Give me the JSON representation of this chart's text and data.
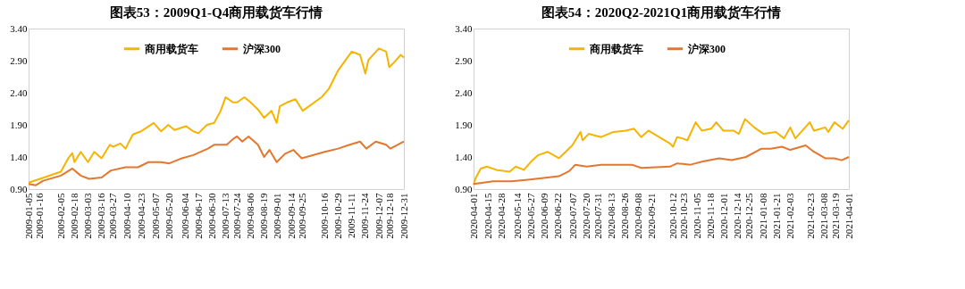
{
  "chart_data": [
    {
      "type": "line",
      "title": "图表53：2009Q1-Q4商用载货车行情",
      "ylim": [
        0.9,
        3.4
      ],
      "yticks": [
        {
          "value": 0.9,
          "label": "0.90"
        },
        {
          "value": 1.4,
          "label": "1.40"
        },
        {
          "value": 1.9,
          "label": "1.90"
        },
        {
          "value": 2.4,
          "label": "2.40"
        },
        {
          "value": 2.9,
          "label": "2.90"
        },
        {
          "value": 3.4,
          "label": "3.40"
        }
      ],
      "xlim": [
        "2009-01-05",
        "2009-12-31"
      ],
      "xticks": [
        "2009-01-05",
        "2009-01-16",
        "2009-02-05",
        "2009-02-18",
        "2009-03-03",
        "2009-03-16",
        "2009-03-27",
        "2009-04-10",
        "2009-04-23",
        "2009-05-07",
        "2009-05-20",
        "2009-06-04",
        "2009-06-17",
        "2009-06-30",
        "2009-07-13",
        "2009-07-24",
        "2009-08-06",
        "2009-08-19",
        "2009-09-01",
        "2009-09-14",
        "2009-09-25",
        "2009-10-16",
        "2009-10-29",
        "2009-11-11",
        "2009-11-24",
        "2009-12-07",
        "2009-12-18",
        "2009-12-31"
      ],
      "grid": false,
      "legend": "top",
      "line_style": "solid",
      "marker": "none",
      "series": [
        {
          "name": "商用载货车",
          "color": "#f5b400",
          "x": [
            "2009-01-05",
            "2009-01-16",
            "2009-02-05",
            "2009-02-12",
            "2009-02-16",
            "2009-02-18",
            "2009-02-24",
            "2009-03-03",
            "2009-03-09",
            "2009-03-16",
            "2009-03-24",
            "2009-03-27",
            "2009-04-03",
            "2009-04-08",
            "2009-04-15",
            "2009-04-23",
            "2009-05-05",
            "2009-05-12",
            "2009-05-19",
            "2009-05-25",
            "2009-06-05",
            "2009-06-12",
            "2009-06-17",
            "2009-06-25",
            "2009-07-02",
            "2009-07-08",
            "2009-07-13",
            "2009-07-20",
            "2009-07-24",
            "2009-07-31",
            "2009-08-06",
            "2009-08-13",
            "2009-08-19",
            "2009-08-26",
            "2009-08-31",
            "2009-09-03",
            "2009-09-10",
            "2009-09-18",
            "2009-09-25",
            "2009-10-13",
            "2009-10-20",
            "2009-10-29",
            "2009-11-06",
            "2009-11-11",
            "2009-11-19",
            "2009-11-24",
            "2009-11-27",
            "2009-12-07",
            "2009-12-14",
            "2009-12-17",
            "2009-12-22",
            "2009-12-28",
            "2009-12-31"
          ],
          "values": [
            1.0,
            1.06,
            1.17,
            1.38,
            1.46,
            1.32,
            1.48,
            1.32,
            1.48,
            1.38,
            1.59,
            1.56,
            1.61,
            1.53,
            1.75,
            1.8,
            1.93,
            1.8,
            1.9,
            1.82,
            1.88,
            1.8,
            1.77,
            1.9,
            1.93,
            2.11,
            2.33,
            2.25,
            2.25,
            2.33,
            2.25,
            2.14,
            2.01,
            2.12,
            1.93,
            2.19,
            2.25,
            2.3,
            2.12,
            2.33,
            2.46,
            2.75,
            2.93,
            3.04,
            2.99,
            2.7,
            2.91,
            3.09,
            3.04,
            2.8,
            2.88,
            2.99,
            2.95
          ]
        },
        {
          "name": "沪深300",
          "color": "#e5762e",
          "x": [
            "2009-01-05",
            "2009-01-12",
            "2009-01-19",
            "2009-02-05",
            "2009-02-16",
            "2009-02-24",
            "2009-03-04",
            "2009-03-16",
            "2009-03-25",
            "2009-04-08",
            "2009-04-20",
            "2009-04-30",
            "2009-05-12",
            "2009-05-20",
            "2009-06-01",
            "2009-06-12",
            "2009-06-26",
            "2009-07-02",
            "2009-07-14",
            "2009-07-21",
            "2009-07-24",
            "2009-07-29",
            "2009-08-04",
            "2009-08-13",
            "2009-08-19",
            "2009-08-24",
            "2009-08-31",
            "2009-09-08",
            "2009-09-16",
            "2009-09-24",
            "2009-10-16",
            "2009-10-29",
            "2009-11-09",
            "2009-11-19",
            "2009-11-25",
            "2009-12-04",
            "2009-12-14",
            "2009-12-18",
            "2009-12-31"
          ],
          "values": [
            0.98,
            0.96,
            1.03,
            1.11,
            1.22,
            1.11,
            1.06,
            1.08,
            1.19,
            1.24,
            1.24,
            1.32,
            1.32,
            1.3,
            1.38,
            1.43,
            1.53,
            1.59,
            1.59,
            1.69,
            1.72,
            1.64,
            1.72,
            1.59,
            1.4,
            1.51,
            1.32,
            1.45,
            1.51,
            1.38,
            1.48,
            1.53,
            1.59,
            1.64,
            1.53,
            1.64,
            1.59,
            1.53,
            1.64
          ]
        }
      ]
    },
    {
      "type": "line",
      "title": "图表54：2020Q2-2021Q1商用载货车行情",
      "ylim": [
        0.9,
        3.4
      ],
      "yticks": [
        {
          "value": 0.9,
          "label": "0.90"
        },
        {
          "value": 1.4,
          "label": "1.40"
        },
        {
          "value": 1.9,
          "label": "1.90"
        },
        {
          "value": 2.4,
          "label": "2.40"
        },
        {
          "value": 2.9,
          "label": "2.90"
        },
        {
          "value": 3.4,
          "label": "3.40"
        }
      ],
      "xlim": [
        "2020-04-01",
        "2021-04-01"
      ],
      "xticks": [
        "2020-04-01",
        "2020-04-15",
        "2020-04-28",
        "2020-05-14",
        "2020-05-27",
        "2020-06-09",
        "2020-06-22",
        "2020-07-07",
        "2020-07-20",
        "2020-07-31",
        "2020-08-13",
        "2020-08-26",
        "2020-09-08",
        "2020-09-21",
        "2020-10-12",
        "2020-10-23",
        "2020-11-05",
        "2020-11-18",
        "2020-12-01",
        "2020-12-14",
        "2020-12-25",
        "2021-01-08",
        "2021-01-21",
        "2021-02-03",
        "2021-02-23",
        "2021-03-08",
        "2021-03-19",
        "2021-04-01"
      ],
      "grid": false,
      "legend": "top",
      "line_style": "solid",
      "marker": "none",
      "series": [
        {
          "name": "商用载货车",
          "color": "#f5b400",
          "x": [
            "2020-04-01",
            "2020-04-03",
            "2020-04-08",
            "2020-04-14",
            "2020-04-23",
            "2020-05-06",
            "2020-05-12",
            "2020-05-20",
            "2020-05-27",
            "2020-06-03",
            "2020-06-12",
            "2020-06-23",
            "2020-07-06",
            "2020-07-14",
            "2020-07-16",
            "2020-07-22",
            "2020-08-03",
            "2020-08-15",
            "2020-08-27",
            "2020-09-04",
            "2020-09-11",
            "2020-09-18",
            "2020-10-09",
            "2020-10-12",
            "2020-10-16",
            "2020-10-21",
            "2020-10-26",
            "2020-11-03",
            "2020-11-09",
            "2020-11-18",
            "2020-11-23",
            "2020-11-30",
            "2020-12-10",
            "2020-12-15",
            "2020-12-21",
            "2020-12-30",
            "2021-01-08",
            "2021-01-20",
            "2021-01-28",
            "2021-02-03",
            "2021-02-08",
            "2021-02-22",
            "2021-02-26",
            "2021-03-09",
            "2021-03-12",
            "2021-03-18",
            "2021-03-26",
            "2021-04-01"
          ],
          "values": [
            0.97,
            1.07,
            1.22,
            1.25,
            1.2,
            1.17,
            1.25,
            1.2,
            1.33,
            1.43,
            1.48,
            1.38,
            1.58,
            1.79,
            1.66,
            1.76,
            1.71,
            1.79,
            1.81,
            1.84,
            1.71,
            1.81,
            1.61,
            1.56,
            1.71,
            1.69,
            1.66,
            1.94,
            1.81,
            1.84,
            1.94,
            1.81,
            1.81,
            1.76,
            1.99,
            1.86,
            1.76,
            1.79,
            1.69,
            1.86,
            1.69,
            1.94,
            1.81,
            1.86,
            1.79,
            1.94,
            1.84,
            1.97
          ]
        },
        {
          "name": "沪深300",
          "color": "#e5762e",
          "x": [
            "2020-04-01",
            "2020-04-20",
            "2020-05-08",
            "2020-05-26",
            "2020-06-12",
            "2020-06-23",
            "2020-07-03",
            "2020-07-09",
            "2020-07-20",
            "2020-08-03",
            "2020-08-17",
            "2020-09-02",
            "2020-09-11",
            "2020-10-09",
            "2020-10-16",
            "2020-10-29",
            "2020-11-10",
            "2020-11-26",
            "2020-12-08",
            "2020-12-22",
            "2021-01-06",
            "2021-01-15",
            "2021-01-26",
            "2021-02-03",
            "2021-02-18",
            "2021-02-26",
            "2021-03-09",
            "2021-03-18",
            "2021-03-25",
            "2021-04-01"
          ],
          "values": [
            0.98,
            1.02,
            1.02,
            1.05,
            1.08,
            1.1,
            1.18,
            1.28,
            1.25,
            1.28,
            1.28,
            1.28,
            1.23,
            1.25,
            1.3,
            1.28,
            1.33,
            1.38,
            1.35,
            1.4,
            1.53,
            1.53,
            1.56,
            1.51,
            1.58,
            1.48,
            1.38,
            1.38,
            1.35,
            1.4
          ]
        }
      ]
    }
  ]
}
